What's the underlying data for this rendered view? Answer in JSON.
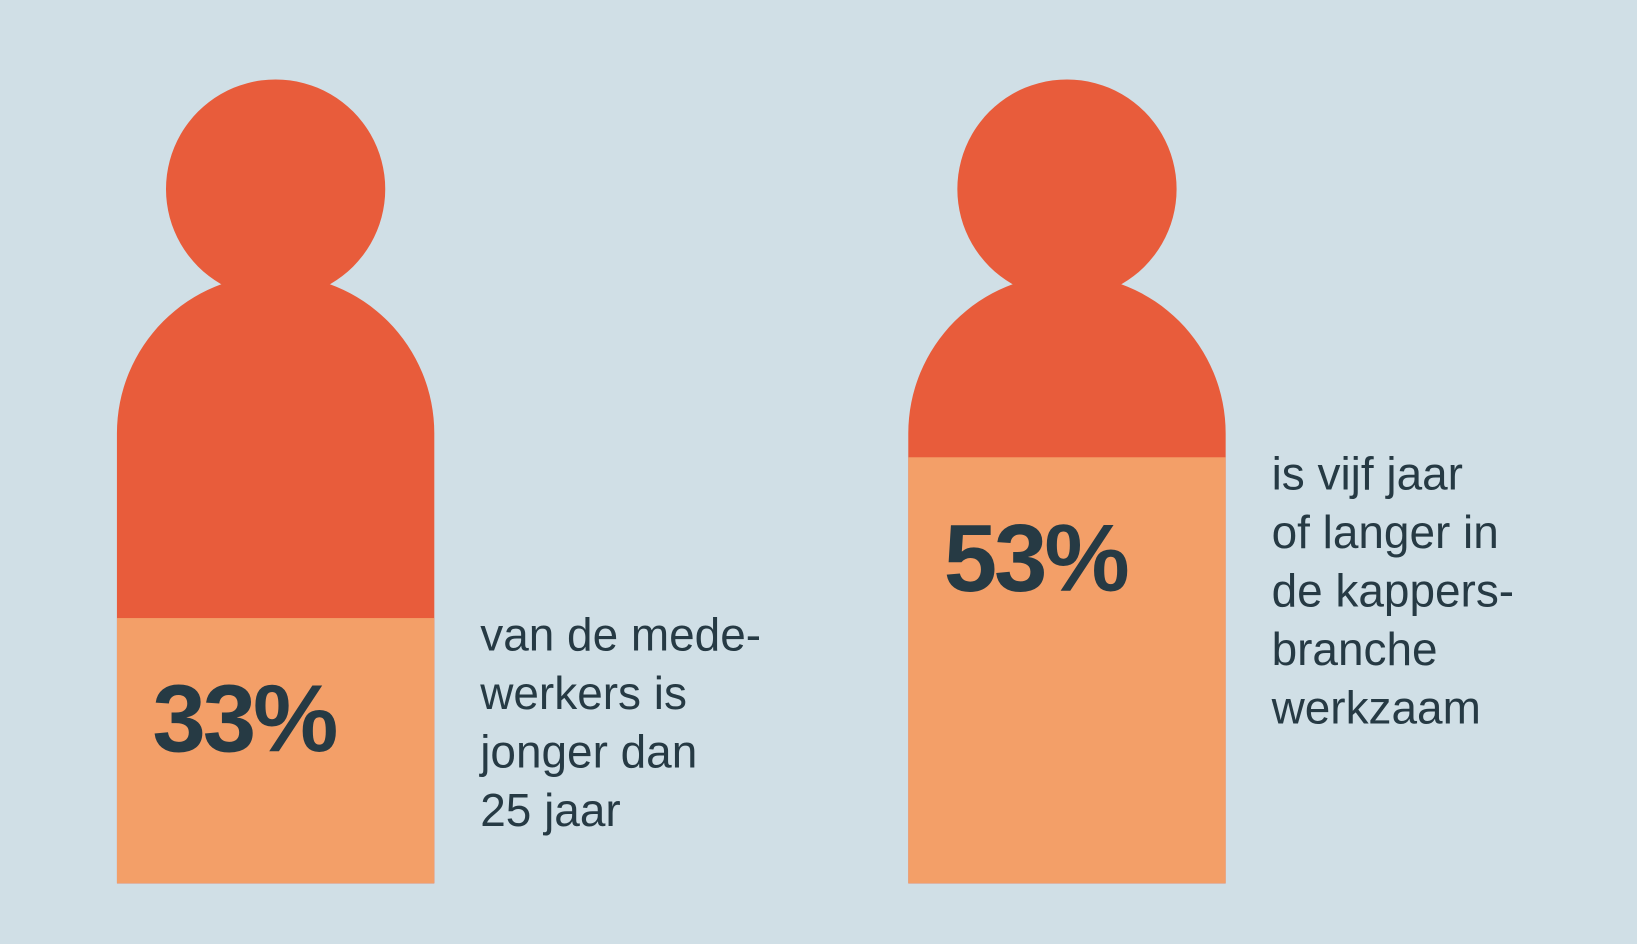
{
  "chart_data": {
    "type": "pictogram",
    "values": [
      33,
      53
    ],
    "value_labels": [
      "33%",
      "53%"
    ],
    "descriptions": [
      [
        "van de mede-",
        "werkers is",
        "jonger dan",
        "25 jaar"
      ],
      [
        "is vijf jaar",
        "of langer in",
        "de kappers-",
        "branche",
        "werkzaam"
      ]
    ],
    "ylim": [
      0,
      100
    ],
    "color": "#e85c3b",
    "fill_color": "#f39f68"
  }
}
